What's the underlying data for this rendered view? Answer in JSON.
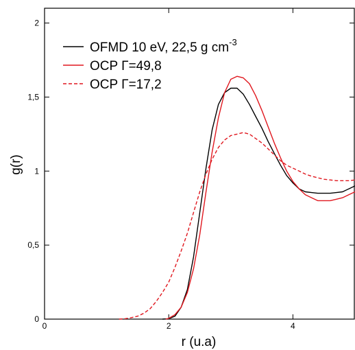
{
  "chart_data": {
    "type": "line",
    "xlabel": "r (u.a)",
    "ylabel": "g(r)",
    "xlim": [
      0,
      5
    ],
    "ylim": [
      0,
      2.1
    ],
    "x_ticks": [
      0,
      2,
      4
    ],
    "x_tick_labels": [
      "0",
      "2",
      "4"
    ],
    "y_ticks": [
      0,
      0.5,
      1,
      1.5,
      2
    ],
    "y_tick_labels": [
      "0",
      "0,5",
      "1",
      "1,5",
      "2"
    ],
    "grid": false,
    "legend_position": "top-left",
    "series": [
      {
        "name": "OFMD 10 eV, 22,5 g cm",
        "name_superscript": "-3",
        "color": "#000000",
        "dash": "solid",
        "x": [
          1.9,
          2.0,
          2.1,
          2.2,
          2.3,
          2.4,
          2.5,
          2.6,
          2.7,
          2.8,
          2.9,
          3.0,
          3.1,
          3.2,
          3.3,
          3.4,
          3.5,
          3.6,
          3.7,
          3.8,
          3.9,
          4.0,
          4.1,
          4.2,
          4.3,
          4.4,
          4.5,
          4.6,
          4.7,
          4.8,
          4.9,
          5.0
        ],
        "y": [
          0.0,
          0.003,
          0.02,
          0.08,
          0.2,
          0.42,
          0.72,
          1.02,
          1.28,
          1.45,
          1.53,
          1.56,
          1.56,
          1.52,
          1.45,
          1.37,
          1.29,
          1.2,
          1.12,
          1.04,
          0.97,
          0.92,
          0.88,
          0.86,
          0.855,
          0.85,
          0.85,
          0.85,
          0.855,
          0.86,
          0.88,
          0.9
        ]
      },
      {
        "name": "OCP Γ=49,8",
        "color": "#e0171e",
        "dash": "solid",
        "x": [
          1.95,
          2.0,
          2.1,
          2.2,
          2.3,
          2.4,
          2.5,
          2.6,
          2.7,
          2.8,
          2.9,
          3.0,
          3.1,
          3.2,
          3.3,
          3.4,
          3.5,
          3.6,
          3.7,
          3.8,
          3.9,
          4.0,
          4.1,
          4.2,
          4.3,
          4.4,
          4.5,
          4.6,
          4.7,
          4.8,
          4.9,
          5.0
        ],
        "y": [
          0.0,
          0.005,
          0.03,
          0.08,
          0.18,
          0.34,
          0.57,
          0.86,
          1.13,
          1.36,
          1.53,
          1.62,
          1.64,
          1.63,
          1.59,
          1.51,
          1.41,
          1.3,
          1.19,
          1.09,
          1.0,
          0.93,
          0.88,
          0.84,
          0.82,
          0.8,
          0.8,
          0.8,
          0.81,
          0.82,
          0.84,
          0.86
        ]
      },
      {
        "name": "OCP Γ=17,2",
        "color": "#e0171e",
        "dash": "dashed",
        "x": [
          1.2,
          1.3,
          1.4,
          1.5,
          1.6,
          1.7,
          1.8,
          1.9,
          2.0,
          2.1,
          2.2,
          2.3,
          2.4,
          2.5,
          2.6,
          2.7,
          2.8,
          2.9,
          3.0,
          3.1,
          3.2,
          3.3,
          3.4,
          3.5,
          3.6,
          3.7,
          3.8,
          3.9,
          4.0,
          4.1,
          4.2,
          4.3,
          4.4,
          4.5,
          4.6,
          4.7,
          4.8,
          4.9,
          5.0
        ],
        "y": [
          0.0,
          0.003,
          0.01,
          0.02,
          0.04,
          0.07,
          0.12,
          0.18,
          0.25,
          0.35,
          0.46,
          0.58,
          0.72,
          0.86,
          0.98,
          1.08,
          1.16,
          1.21,
          1.24,
          1.25,
          1.26,
          1.25,
          1.22,
          1.19,
          1.15,
          1.11,
          1.07,
          1.04,
          1.02,
          1.0,
          0.98,
          0.965,
          0.955,
          0.945,
          0.94,
          0.935,
          0.935,
          0.935,
          0.94
        ]
      }
    ]
  }
}
